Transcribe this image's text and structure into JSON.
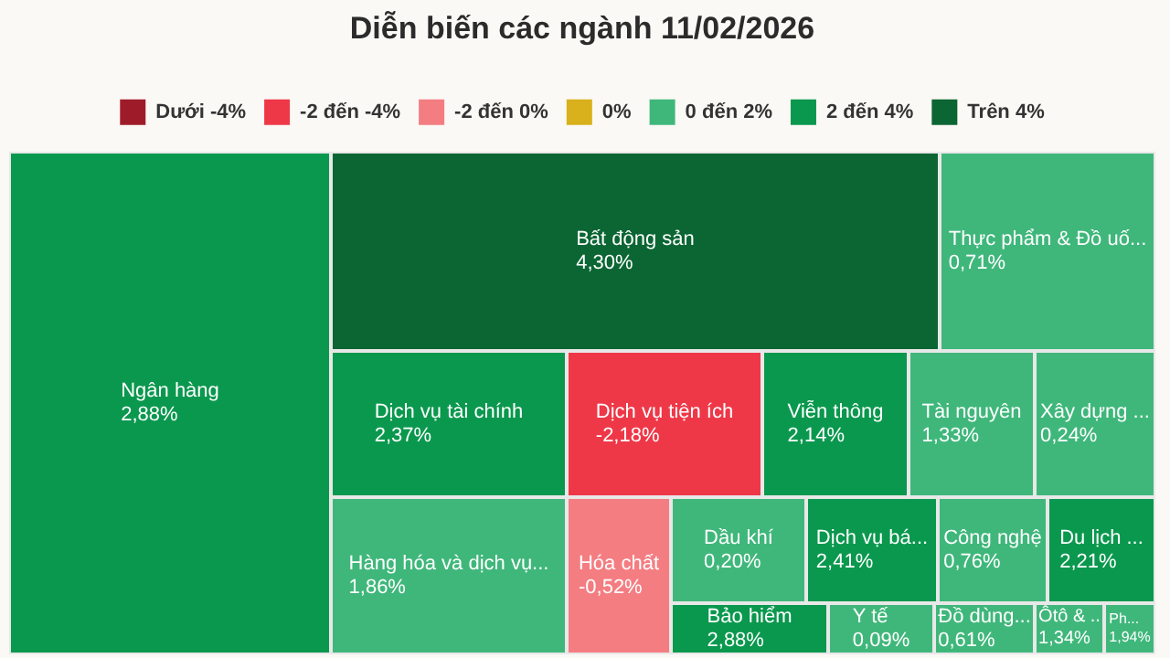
{
  "chart_data": {
    "type": "other",
    "title": "Diễn biến các ngành 11/02/2026",
    "legend": "top",
    "categories": [
      "Ngân hàng",
      "Bất động sản",
      "Thực phẩm & Đồ uố...",
      "Dịch vụ tài chính",
      "Dịch vụ tiện ích",
      "Viễn thông",
      "Tài nguyên",
      "Xây dựng ...",
      "Hàng hóa và dịch vụ...",
      "Hóa chất",
      "Dầu khí",
      "Dịch vụ bá...",
      "Công nghệ",
      "Du lịch ...",
      "Bảo hiểm",
      "Y tế",
      "Đồ dùng...",
      "Ôtô & ..",
      "Ph..."
    ],
    "values": [
      2.88,
      4.3,
      0.71,
      2.37,
      -2.18,
      2.14,
      1.33,
      0.24,
      1.86,
      -0.52,
      0.2,
      2.41,
      0.76,
      2.21,
      2.88,
      0.09,
      0.61,
      1.34,
      1.94
    ],
    "value_labels": [
      "2,88%",
      "4,30%",
      "0,71%",
      "2,37%",
      "-2,18%",
      "2,14%",
      "1,33%",
      "0,24%",
      "1,86%",
      "-0,52%",
      "0,20%",
      "2,41%",
      "0,76%",
      "2,21%",
      "2,88%",
      "0,09%",
      "0,61%",
      "1,34%",
      "1,94%"
    ],
    "colors": [
      "#0a984e",
      "#0b6633",
      "#3fb77b",
      "#0a984e",
      "#ee3848",
      "#0a984e",
      "#3fb77b",
      "#3fb77b",
      "#3fb77b",
      "#f47d82",
      "#3fb77b",
      "#0a984e",
      "#3fb77b",
      "#0a984e",
      "#0a984e",
      "#3fb77b",
      "#3fb77b",
      "#3fb77b",
      "#3fb77b"
    ],
    "series": [
      {
        "name": "Dưới -4%",
        "color": "#9e1c2a",
        "values": [
          null,
          null,
          null,
          null,
          null,
          null,
          null,
          null,
          null,
          null,
          null,
          null,
          null,
          null,
          null,
          null,
          null,
          null,
          null
        ]
      },
      {
        "name": "-2 đến -4%",
        "color": "#ee3848",
        "values": [
          null,
          null,
          null,
          null,
          null,
          null,
          null,
          null,
          null,
          null,
          null,
          null,
          null,
          null,
          null,
          null,
          null,
          null,
          null
        ]
      },
      {
        "name": "-2 đến 0%",
        "color": "#f47d82",
        "values": [
          null,
          null,
          null,
          null,
          null,
          null,
          null,
          null,
          null,
          null,
          null,
          null,
          null,
          null,
          null,
          null,
          null,
          null,
          null
        ]
      },
      {
        "name": "0%",
        "color": "#d8b11c",
        "values": [
          null,
          null,
          null,
          null,
          null,
          null,
          null,
          null,
          null,
          null,
          null,
          null,
          null,
          null,
          null,
          null,
          null,
          null,
          null
        ]
      },
      {
        "name": "0 đến 2%",
        "color": "#3fb77b",
        "values": [
          null,
          null,
          null,
          null,
          null,
          null,
          null,
          null,
          null,
          null,
          null,
          null,
          null,
          null,
          null,
          null,
          null,
          null,
          null
        ]
      },
      {
        "name": "2 đến 4%",
        "color": "#0a984e",
        "values": [
          null,
          null,
          null,
          null,
          null,
          null,
          null,
          null,
          null,
          null,
          null,
          null,
          null,
          null,
          null,
          null,
          null,
          null,
          null
        ]
      },
      {
        "name": "Trên 4%",
        "color": "#0b6633",
        "values": [
          null,
          null,
          null,
          null,
          null,
          null,
          null,
          null,
          null,
          null,
          null,
          null,
          null,
          null,
          null,
          null,
          null,
          null,
          null
        ]
      }
    ]
  }
}
